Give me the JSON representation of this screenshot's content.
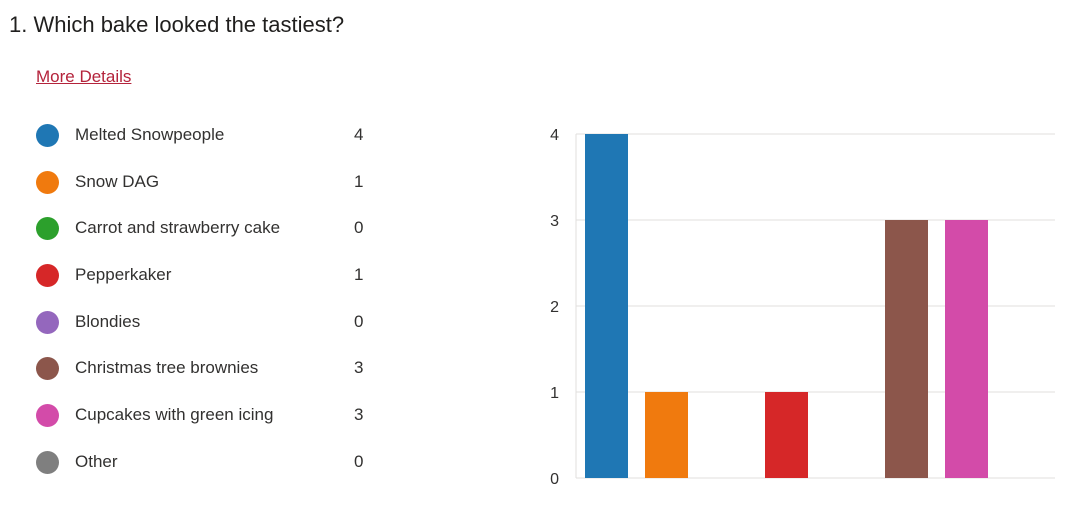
{
  "question": {
    "title": "1.  Which bake looked the tastiest?",
    "more_details_label": "More Details"
  },
  "colors": {
    "Melted Snowpeople": "#1f77b4",
    "Snow DAG": "#f07a0e",
    "Carrot and strawberry cake": "#2ca02c",
    "Pepperkaker": "#d62728",
    "Blondies": "#9467bd",
    "Christmas tree brownies": "#8c564b",
    "Cupcakes with green icing": "#d34ba9",
    "Other": "#7f7f7f"
  },
  "chart_data": {
    "type": "bar",
    "categories": [
      "Melted Snowpeople",
      "Snow DAG",
      "Carrot and strawberry cake",
      "Pepperkaker",
      "Blondies",
      "Christmas tree brownies",
      "Cupcakes with green icing",
      "Other"
    ],
    "values": [
      4,
      1,
      0,
      1,
      0,
      3,
      3,
      0
    ],
    "title": "",
    "xlabel": "",
    "ylabel": "",
    "ylim": [
      0,
      4
    ],
    "yticks": [
      "0",
      "1",
      "2",
      "3",
      "4"
    ],
    "grid": true,
    "legend": "left"
  }
}
